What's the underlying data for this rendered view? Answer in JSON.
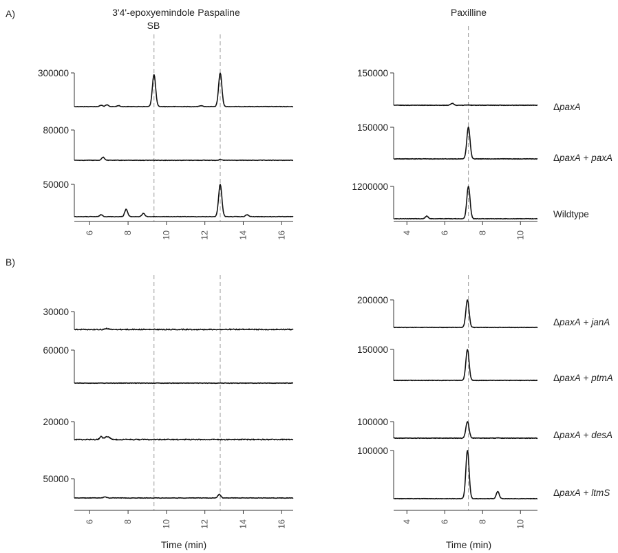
{
  "panel_labels": [
    "A)",
    "B)"
  ],
  "headers": {
    "left_peak_1": [
      "3'4'-epoxyemindole",
      "SB"
    ],
    "left_peak_2": "Paspaline",
    "right_peak": "Paxilline"
  },
  "x_axis_title": "Time (min)",
  "sample_labels": {
    "a1": "ΔpaxA",
    "a2": "ΔpaxA + paxA",
    "a3": "Wildtype",
    "b1": "ΔpaxA + janA",
    "b2": "ΔpaxA + ptmA",
    "b3": "ΔpaxA + desA",
    "b4": "ΔpaxA + ltmS"
  },
  "colors": {
    "trace": "#111111",
    "axis": "#333333",
    "reference_line": "#999999"
  },
  "chart_data": [
    {
      "type": "line",
      "panel": "A-left",
      "xlabel": "",
      "xlim": [
        5.2,
        16.6
      ],
      "x_ticks": [
        6,
        8,
        10,
        12,
        14,
        16
      ],
      "reference_lines_x": [
        9.35,
        12.8
      ],
      "traces": [
        {
          "y_label": "300000",
          "baseline_noise": "low",
          "peaks": [
            {
              "x": 6.6,
              "y": 0.04
            },
            {
              "x": 6.9,
              "y": 0.05
            },
            {
              "x": 7.5,
              "y": 0.03
            },
            {
              "x": 9.35,
              "y": 0.95
            },
            {
              "x": 11.8,
              "y": 0.03
            },
            {
              "x": 12.8,
              "y": 1.0
            }
          ]
        },
        {
          "y_label": "80000",
          "baseline_noise": "low",
          "peaks": [
            {
              "x": 6.7,
              "y": 0.1
            },
            {
              "x": 12.8,
              "y": 0.02
            }
          ]
        },
        {
          "y_label": "50000",
          "baseline_noise": "low",
          "peaks": [
            {
              "x": 6.6,
              "y": 0.06
            },
            {
              "x": 7.9,
              "y": 0.23
            },
            {
              "x": 8.8,
              "y": 0.1
            },
            {
              "x": 12.8,
              "y": 1.0
            },
            {
              "x": 14.2,
              "y": 0.06
            }
          ]
        }
      ]
    },
    {
      "type": "line",
      "panel": "A-right",
      "xlabel": "",
      "xlim": [
        3.3,
        10.9
      ],
      "x_ticks": [
        4,
        6,
        8,
        10
      ],
      "reference_lines_x": [
        7.25
      ],
      "traces": [
        {
          "y_label": "150000",
          "baseline_noise": "low",
          "peaks": [
            {
              "x": 6.4,
              "y": 0.06
            },
            {
              "x": 7.25,
              "y": 0.01
            }
          ]
        },
        {
          "y_label": "150000",
          "baseline_noise": "low",
          "peaks": [
            {
              "x": 7.25,
              "y": 1.0
            }
          ]
        },
        {
          "y_label": "1200000",
          "baseline_noise": "low",
          "peaks": [
            {
              "x": 5.05,
              "y": 0.08
            },
            {
              "x": 7.25,
              "y": 1.0
            }
          ]
        }
      ]
    },
    {
      "type": "line",
      "panel": "B-left",
      "xlabel": "Time (min)",
      "xlim": [
        5.2,
        16.6
      ],
      "x_ticks": [
        6,
        8,
        10,
        12,
        14,
        16
      ],
      "reference_lines_x": [
        9.35,
        12.8
      ],
      "traces": [
        {
          "y_label": "30000",
          "baseline_noise": "high",
          "peaks": [
            {
              "x": 6.9,
              "y": 0.06
            }
          ]
        },
        {
          "y_label": "60000",
          "baseline_noise": "low",
          "peaks": []
        },
        {
          "y_label": "20000",
          "baseline_noise": "high",
          "peaks": [
            {
              "x": 6.6,
              "y": 0.16
            },
            {
              "x": 6.85,
              "y": 0.14
            },
            {
              "x": 7.0,
              "y": 0.1
            }
          ]
        },
        {
          "y_label": "50000",
          "baseline_noise": "low",
          "peaks": [
            {
              "x": 6.8,
              "y": 0.06
            },
            {
              "x": 12.75,
              "y": 0.19
            }
          ]
        }
      ]
    },
    {
      "type": "line",
      "panel": "B-right",
      "xlabel": "Time (min)",
      "xlim": [
        3.3,
        10.9
      ],
      "x_ticks": [
        4,
        6,
        8,
        10
      ],
      "reference_lines_x": [
        7.25
      ],
      "traces": [
        {
          "y_label": "200000",
          "baseline_noise": "low",
          "peaks": [
            {
              "x": 7.2,
              "y": 1.0
            }
          ]
        },
        {
          "y_label": "150000",
          "baseline_noise": "low",
          "peaks": [
            {
              "x": 7.2,
              "y": 1.0
            }
          ]
        },
        {
          "y_label": "100000",
          "baseline_noise": "low",
          "peaks": [
            {
              "x": 7.2,
              "y": 1.0
            },
            {
              "x": 8.8,
              "y": 0.02
            }
          ]
        },
        {
          "y_label": "100000",
          "baseline_noise": "low",
          "peaks": [
            {
              "x": 7.2,
              "y": 1.0
            },
            {
              "x": 8.8,
              "y": 0.15
            }
          ]
        }
      ]
    }
  ]
}
